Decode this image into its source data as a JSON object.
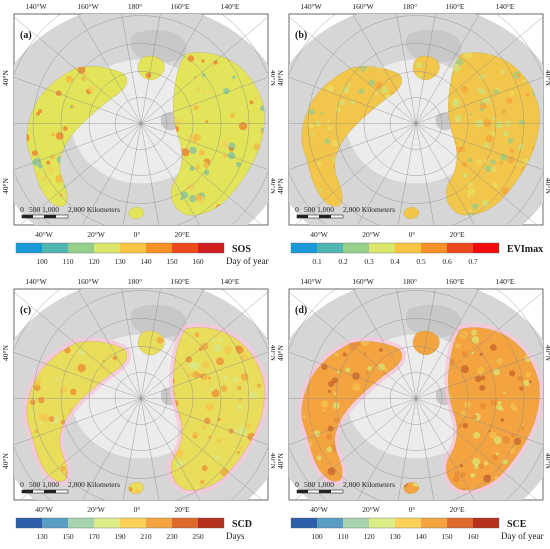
{
  "grid_labels": {
    "top": [
      "140°W",
      "160°W",
      "180°",
      "160°E",
      "140°E"
    ],
    "bottom": [
      "40°W",
      "20°W",
      "0°",
      "20°E"
    ],
    "left_upper": "40°N",
    "left_lower": "40°N",
    "right_upper": "40°N",
    "right_lower": "40°N"
  },
  "scalebar": {
    "ticks": [
      "0",
      "500 1,000",
      "2,000 Kilometers"
    ]
  },
  "panels": [
    {
      "label": "(a)",
      "variable": "SOS",
      "unit": "Day of year",
      "ticks": [
        "100",
        "110",
        "120",
        "130",
        "140",
        "150",
        "160"
      ],
      "colors": [
        "#1a9ad6",
        "#4fb7b0",
        "#96cf8c",
        "#dbe86e",
        "#fbc53f",
        "#f79226",
        "#ea4a1c",
        "#d01c1c"
      ],
      "map_palette": [
        "#e2e55a",
        "#f4b43e",
        "#7cc0a6",
        "#f0d25a",
        "#ee7a2c"
      ]
    },
    {
      "label": "(b)",
      "variable": "EVImax",
      "unit": "",
      "ticks": [
        "0.1",
        "0.2",
        "0.3",
        "0.4",
        "0.5",
        "0.6",
        "0.7"
      ],
      "colors": [
        "#1a9ad6",
        "#4fb7b0",
        "#96cf8c",
        "#dbe86e",
        "#fbc53f",
        "#f79226",
        "#ea4a1c",
        "#f00a0a"
      ],
      "map_palette": [
        "#f2c64a",
        "#e9dd63",
        "#f6a33a",
        "#cfe27a",
        "#9ccb86"
      ]
    },
    {
      "label": "(c)",
      "variable": "SCD",
      "unit": "Days",
      "ticks": [
        "130",
        "150",
        "170",
        "190",
        "210",
        "230",
        "250"
      ],
      "colors": [
        "#2c5fa8",
        "#5a9cc4",
        "#a8d3b0",
        "#dbee88",
        "#fbd15a",
        "#f3a440",
        "#dd6a2a",
        "#b4301c"
      ],
      "map_palette": [
        "#e9dd5c",
        "#f4c64a",
        "#f0a23c",
        "#d8e888",
        "#ee8a34"
      ]
    },
    {
      "label": "(d)",
      "variable": "SCE",
      "unit": "Day of year",
      "ticks": [
        "100",
        "110",
        "120",
        "130",
        "140",
        "150",
        "160"
      ],
      "colors": [
        "#2c5fa8",
        "#5a9cc4",
        "#a8d3b0",
        "#dbee88",
        "#fbd15a",
        "#f3a440",
        "#dd6a2a",
        "#b4301c"
      ],
      "map_palette": [
        "#f3a440",
        "#e98a34",
        "#dbe670",
        "#c7642a",
        "#f6c24c"
      ]
    }
  ]
}
